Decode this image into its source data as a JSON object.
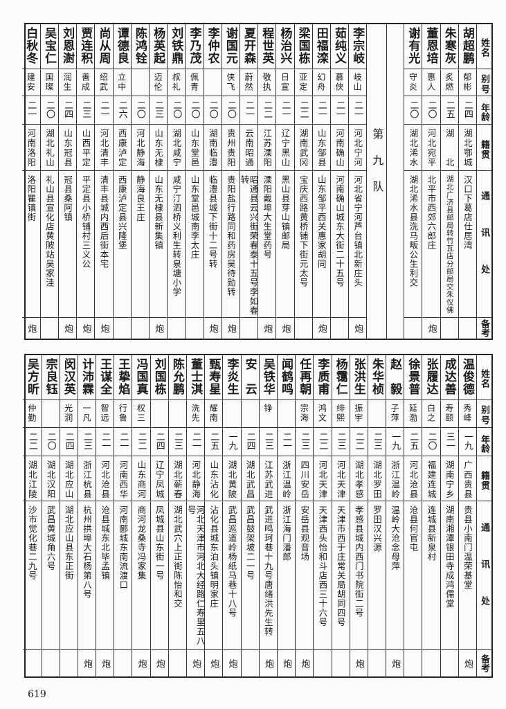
{
  "headers": {
    "name": "姓名",
    "alias": "别号",
    "age": "年龄",
    "native": "籍贯",
    "address": "通讯处",
    "remark": "备考"
  },
  "top": {
    "rows_right": [
      {
        "name": "胡超鹏",
        "alias": "郁彬",
        "age": "二四",
        "native": "湖北鄂城",
        "address": "汉口下葛店仕居湾",
        "remark": ""
      },
      {
        "name": "朱寒灰",
        "alias": "炙燃",
        "age": "二五",
        "native": "湖　　北",
        "address": "湖北广济县邮局转竹瓦店分邮局交朱仪佛",
        "remark": ""
      },
      {
        "name": "董恩培",
        "alias": "惠人",
        "age": "二〇",
        "native": "河北宛平",
        "address": "北平市西郊六郎庄",
        "remark": "炮"
      },
      {
        "name": "谢有光",
        "alias": "守炎",
        "age": "二〇",
        "native": "湖北浠水",
        "address": "湖北浠水县洗马畈公生利交",
        "remark": ""
      }
    ],
    "section_label": "第九队",
    "rows_left": [
      {
        "name": "李宗岐",
        "alias": "岐山",
        "age": "二一",
        "native": "河北宁河",
        "address": "河北省宁河芦台镇北新庄头",
        "remark": "炮"
      },
      {
        "name": "茹纯义",
        "alias": "慕侠",
        "age": "二一",
        "native": "河南确山",
        "address": "河南确山城东大街二十五号",
        "remark": ""
      },
      {
        "name": "田福滦",
        "alias": "幻舟",
        "age": "二一",
        "native": "山东邹县",
        "address": "山东邹平西关惠家胡同",
        "remark": "炮"
      },
      {
        "name": "梁国栋",
        "alias": "亚定",
        "age": "二二",
        "native": "湖南武冈",
        "address": "宝庆西路黄桥铺下街元太号",
        "remark": ""
      },
      {
        "name": "杨治兴",
        "alias": "日宣",
        "age": "二一",
        "native": "辽宁黑山",
        "address": "黑山县芽山镇邮局",
        "remark": "炮"
      },
      {
        "name": "程世英",
        "alias": "敬执",
        "age": "二二",
        "native": "江苏溧阳",
        "address": "溧阳戴埠大生堂药号",
        "remark": "炮"
      },
      {
        "name": "夏开森",
        "alias": "蔚然",
        "age": "二一",
        "native": "云南昭通",
        "address": "昭通县云兴街荣春泰十五号李如春转",
        "remark": ""
      },
      {
        "name": "谢国元",
        "alias": "侠飞",
        "age": "二〇",
        "native": "贵州贵阳",
        "address": "贵阳盐行路同和药房吴待勋转",
        "remark": "炮"
      },
      {
        "name": "李仲农",
        "alias": "",
        "age": "二〇",
        "native": "湖南临澧",
        "address": "临澧县城下街十二号转",
        "remark": "炮"
      },
      {
        "name": "李乃茂",
        "alias": "佩青",
        "age": "二〇",
        "native": "山东堂邑",
        "address": "山东堂邑城南李太庄",
        "remark": ""
      },
      {
        "name": "刘铁鼎",
        "alias": "叔礼",
        "age": "二〇",
        "native": "湖北咸宁",
        "address": "咸宁汀泗桥义利生转泉塘小学",
        "remark": ""
      },
      {
        "name": "杨英起",
        "alias": "迈伦",
        "age": "二三",
        "native": "山东无棣",
        "address": "山东无棣县新集镇",
        "remark": "炮"
      },
      {
        "name": "陈鸿铨",
        "alias": "",
        "age": "二〇",
        "native": "河北静海",
        "address": "静海良王庄",
        "remark": ""
      },
      {
        "name": "谭德良",
        "alias": "立中",
        "age": "二六",
        "native": "西康泸定",
        "address": "西康泸定县兴隆堡",
        "remark": ""
      },
      {
        "name": "尚从周",
        "alias": "绍武",
        "age": "二一",
        "native": "河北清丰",
        "address": "清丰县城内西后街本宅",
        "remark": "炮"
      },
      {
        "name": "贾连积",
        "alias": "善成",
        "age": "二三",
        "native": "山西平定",
        "address": "平定县小桥铺村三义公",
        "remark": "炮"
      },
      {
        "name": "刘恩澍",
        "alias": "润生",
        "age": "二四",
        "native": "山东冠县",
        "address": "冠县桑阿镇",
        "remark": "炮"
      },
      {
        "name": "吴宝仁",
        "alias": "国璨",
        "age": "二〇",
        "native": "湖北礼山",
        "address": "礼山县宣化店黄陂站吴家洼",
        "remark": ""
      },
      {
        "name": "白秋冬",
        "alias": "建安",
        "age": "二一",
        "native": "河南洛阳",
        "address": "洛阳瞿镇街",
        "remark": "炮"
      }
    ]
  },
  "bottom": {
    "rows": [
      {
        "name": "温俊德",
        "alias": "秀峰",
        "age": "一九",
        "native": "广西贵县",
        "address": "贵县小南门温荣基堂",
        "remark": "炮"
      },
      {
        "name": "成达善",
        "alias": "寿颐",
        "age": "三一",
        "native": "湖南宁乡",
        "address": "湖南湘潭银田寺成鸿儒堂",
        "remark": ""
      },
      {
        "name": "张履达",
        "alias": "白之",
        "age": "二〇",
        "native": "福建连城",
        "address": "连城县新泉村",
        "remark": ""
      },
      {
        "name": "徐景普",
        "alias": "延渤",
        "age": "二五",
        "native": "河北沧县",
        "address": "沧县何官屯",
        "remark": ""
      },
      {
        "name": "赵　毅",
        "alias": "子萍",
        "age": "一九",
        "native": "浙江温岭",
        "address": "温岭大沧念母萍",
        "remark": "炮"
      },
      {
        "name": "朱华桢",
        "alias": "",
        "age": "二三",
        "native": "湖北罗田",
        "address": "罗田汉兴源",
        "remark": ""
      },
      {
        "name": "张洪生",
        "alias": "振宇",
        "age": "二二",
        "native": "湖北孝感",
        "address": "孝感县城内西门书院街二号",
        "remark": "炮"
      },
      {
        "name": "杨霭仁",
        "alias": "绯熙",
        "age": "二三",
        "native": "河北天津",
        "address": "天津市西于庄常关局胡同四号",
        "remark": ""
      },
      {
        "name": "李质甫",
        "alias": "鸿文",
        "age": "二二",
        "native": "河北天津",
        "address": "天津西头怡和斗店西三十六号",
        "remark": ""
      },
      {
        "name": "任再朝",
        "alias": "宗海",
        "age": "二三",
        "native": "四川安岳",
        "address": "安岳县观音场",
        "remark": "炮"
      },
      {
        "name": "闻鹤鸣",
        "alias": "",
        "age": "二一",
        "native": "浙江温岭",
        "address": "浙江海门潘郎",
        "remark": "炮"
      },
      {
        "name": "吴铁华",
        "alias": "铮",
        "age": "二三",
        "native": "江苏武进",
        "address": "武进鸣珂巷十九号唐绪洪先生转",
        "remark": "炮"
      },
      {
        "name": "安　云",
        "alias": "",
        "age": "二四",
        "native": "湖北武昌",
        "address": "武昌鼓架坡二一号",
        "remark": ""
      },
      {
        "name": "李炎生",
        "alias": "",
        "age": "一九",
        "native": "湖北黄陂",
        "address": "武昌巡道岭杨纸马巷十八号",
        "remark": "炮"
      },
      {
        "name": "甄寿星",
        "alias": "耀南",
        "age": "二五",
        "native": "山东沾化",
        "address": "沾化县城东泊头镇明家庄",
        "remark": "炮"
      },
      {
        "name": "董士淇",
        "alias": "洗先",
        "age": "二一",
        "native": "河北静海",
        "address": "河北天津市河北大经路仁寿里五八号",
        "remark": "炮"
      },
      {
        "name": "陈允鹏",
        "alias": "",
        "age": "二三",
        "native": "湖北蕲春",
        "address": "湖北武穴上正街陈怡和交",
        "remark": ""
      },
      {
        "name": "刘国栋",
        "alias": "",
        "age": "二四",
        "native": "辽宁凤城",
        "address": "凤城县山东街一号",
        "remark": "炮"
      },
      {
        "name": "冯国真",
        "alias": "权三",
        "age": "二二",
        "native": "山东商河",
        "address": "商河龙桑寺冯家集",
        "remark": "炮"
      },
      {
        "name": "王挚焰",
        "alias": "行鲁",
        "age": "二一",
        "native": "河南西华",
        "address": "河南郾城东南流渡口",
        "remark": ""
      },
      {
        "name": "王谋全",
        "alias": "智远",
        "age": "二一",
        "native": "河北沧县",
        "address": "沧县城东北毕孟镇",
        "remark": "炮"
      },
      {
        "name": "计沛霖",
        "alias": "一凡",
        "age": "二三",
        "native": "浙江杭县",
        "address": "杭州拱埠大石杨第八号",
        "remark": "炮"
      },
      {
        "name": "闵汉英",
        "alias": "光润",
        "age": "二四",
        "native": "湖北应山",
        "address": "湖北应山县东正街",
        "remark": ""
      },
      {
        "name": "宗良钰",
        "alias": "",
        "age": "二〇",
        "native": "湖北汉阳",
        "address": "武昌黄城角六号",
        "remark": ""
      },
      {
        "name": "吴方昕",
        "alias": "仲勤",
        "age": "二二",
        "native": "湖北江陵",
        "address": "沙市觉化巷二九号",
        "remark": ""
      }
    ]
  },
  "page_number": "619"
}
